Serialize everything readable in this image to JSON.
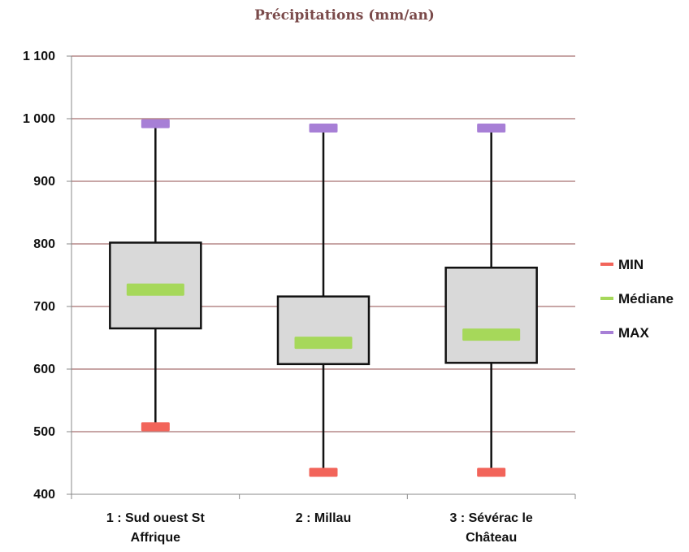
{
  "chart_data": {
    "type": "box",
    "title": "Précipitations (mm/an)",
    "xlabel": "",
    "ylabel": "",
    "ylim": [
      400,
      1100
    ],
    "yticks": [
      400,
      500,
      600,
      700,
      800,
      900,
      1000,
      1100
    ],
    "ytick_labels": [
      "400",
      "500",
      "600",
      "700",
      "800",
      "900",
      "1 000",
      "1 100"
    ],
    "grid": true,
    "legend_position": "right",
    "categories": [
      {
        "lines": [
          "1 : Sud ouest St",
          "Affrique"
        ]
      },
      {
        "lines": [
          "2 : Millau"
        ]
      },
      {
        "lines": [
          "3 : Sévérac le",
          "Château"
        ]
      }
    ],
    "series": [
      {
        "name": "MIN",
        "color": "#f2645a",
        "values": [
          508,
          435,
          435
        ]
      },
      {
        "name": "Médiane",
        "color": "#a6d85a",
        "values": [
          727,
          642,
          655
        ]
      },
      {
        "name": "MAX",
        "color": "#a77fd6",
        "values": [
          992,
          985,
          985
        ]
      }
    ],
    "boxes": [
      {
        "q1": 665,
        "q3": 802
      },
      {
        "q1": 608,
        "q3": 716
      },
      {
        "q1": 610,
        "q3": 762
      }
    ],
    "colors": {
      "grid": "#a87070",
      "box_fill": "#d9d9d9",
      "box_stroke": "#111111",
      "axis": "#888888"
    }
  }
}
